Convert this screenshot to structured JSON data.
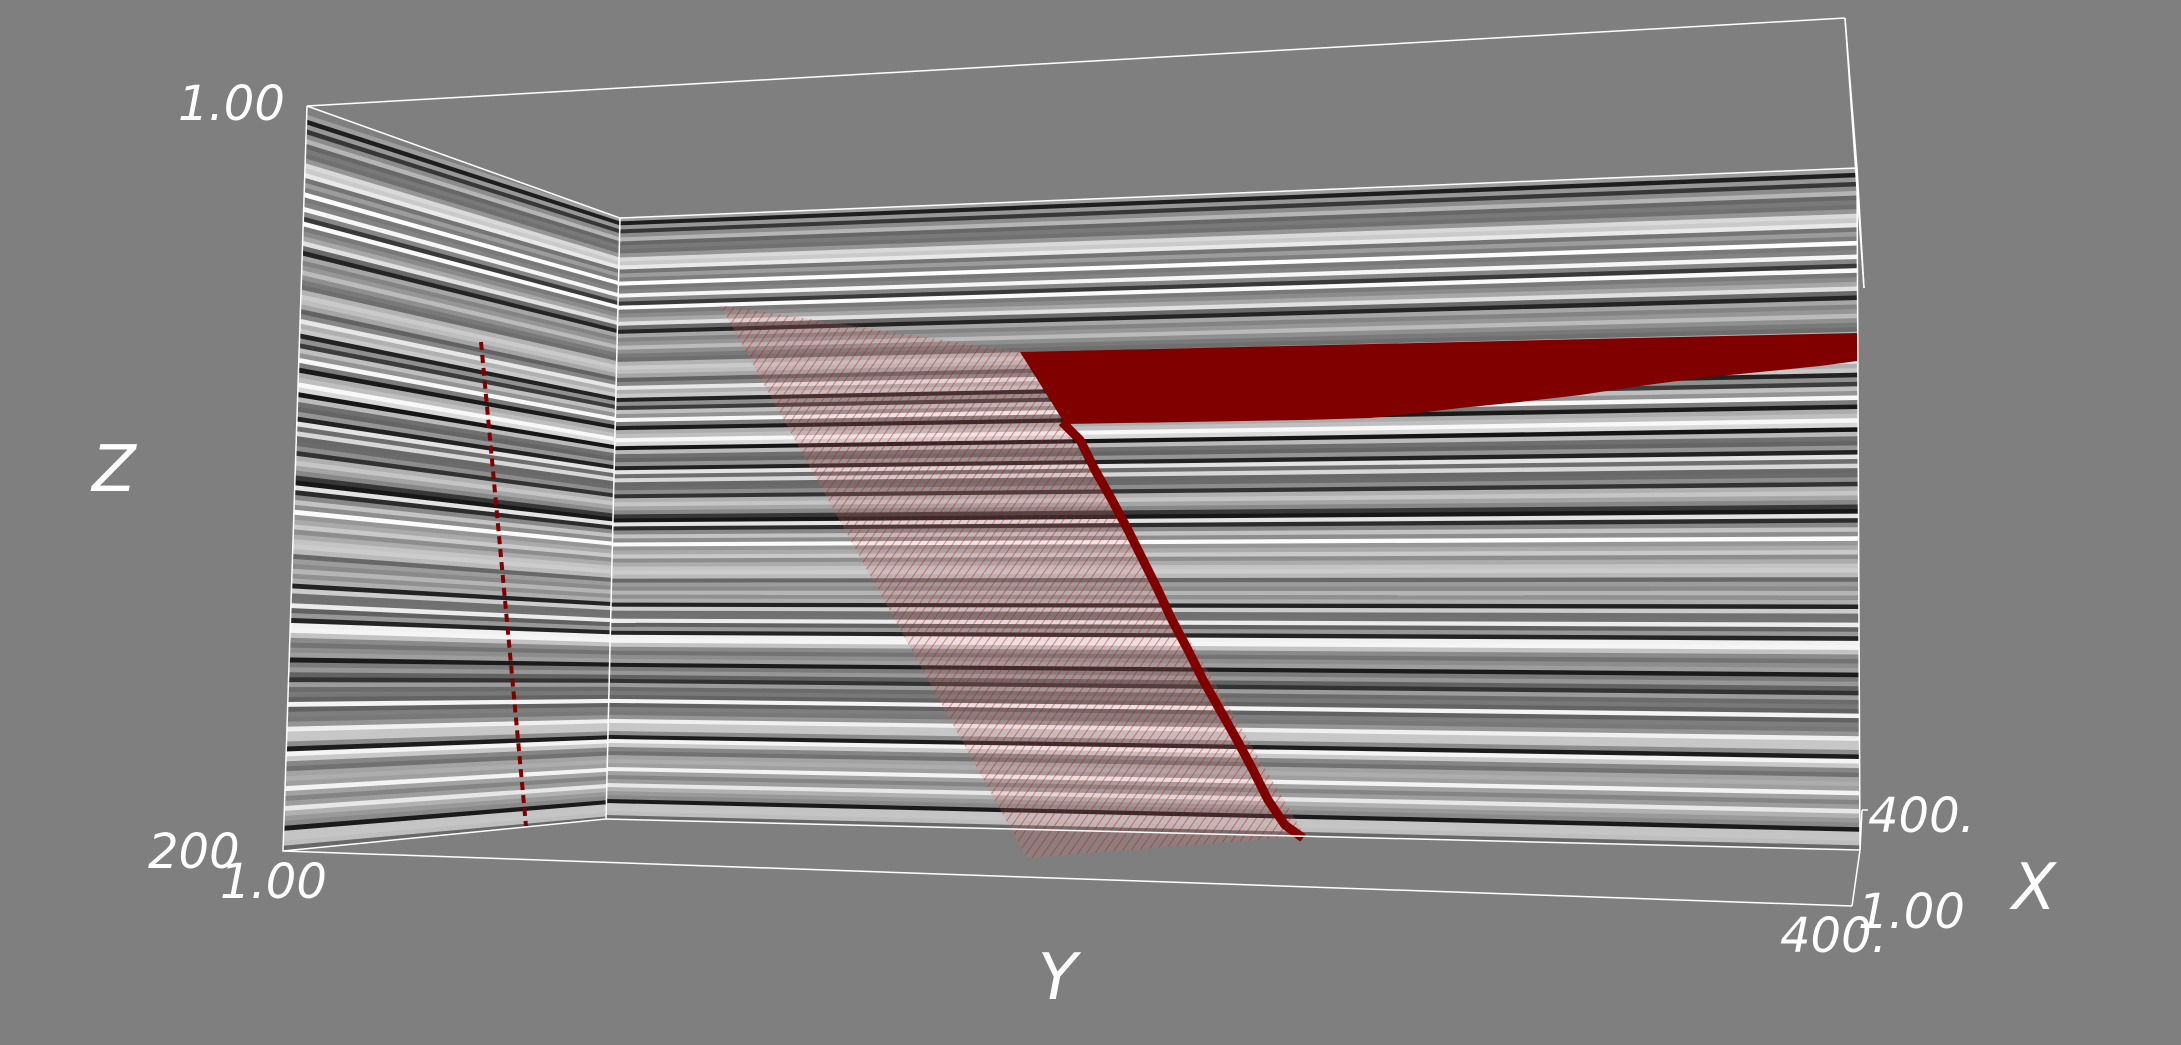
{
  "background_color": "#7f7f7f",
  "axes": {
    "z": {
      "title": "Z",
      "tick_min": "1.00",
      "tick_max": "200"
    },
    "y": {
      "title": "Y",
      "tick_min": "1.00",
      "tick_max": "400."
    },
    "x": {
      "title": "X",
      "tick_min": "1.00",
      "tick_max": "400."
    }
  },
  "slices": {
    "colormap": "gray",
    "fault_color": "#800000"
  }
}
